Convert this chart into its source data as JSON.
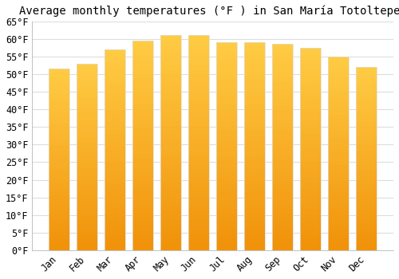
{
  "title": "Average monthly temperatures (°F ) in San María Totoltepec",
  "months": [
    "Jan",
    "Feb",
    "Mar",
    "Apr",
    "May",
    "Jun",
    "Jul",
    "Aug",
    "Sep",
    "Oct",
    "Nov",
    "Dec"
  ],
  "values": [
    51.5,
    53.0,
    57.0,
    59.5,
    61.0,
    61.0,
    59.0,
    59.0,
    58.5,
    57.5,
    55.0,
    52.0
  ],
  "bar_color_top": "#FFCC44",
  "bar_color_bottom": "#F0920A",
  "bar_edge_color": "#DDDDDD",
  "background_color": "#FFFFFF",
  "grid_color": "#DDDDDD",
  "ylim": [
    0,
    65
  ],
  "ytick_step": 5,
  "title_fontsize": 10,
  "tick_fontsize": 8.5,
  "bar_width": 0.75
}
